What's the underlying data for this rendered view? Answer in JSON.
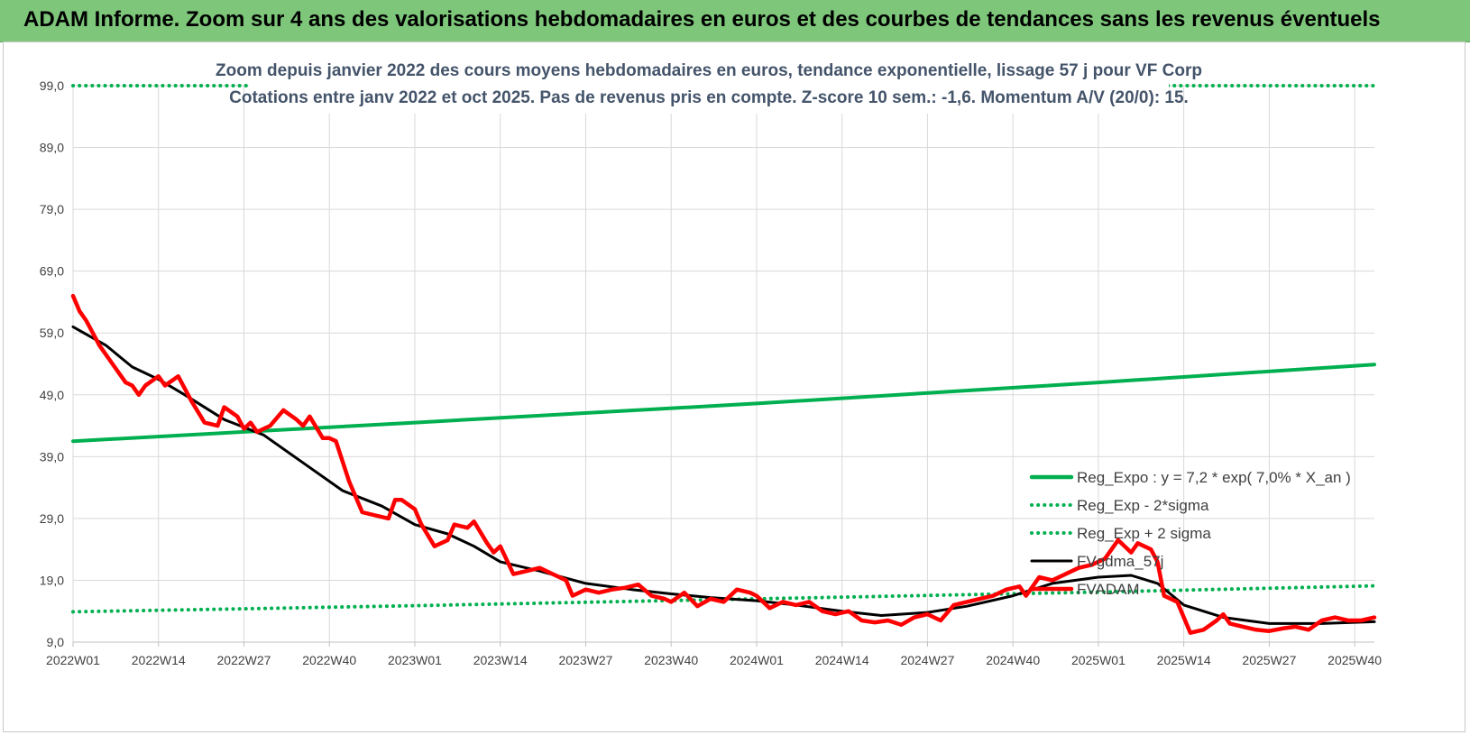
{
  "banner": {
    "title": "ADAM Informe. Zoom sur 4 ans des valorisations hebdomadaires en euros et des courbes de tendances sans les revenus éventuels"
  },
  "colors": {
    "banner_bg": "#7dc67a",
    "reg_expo": "#00b050",
    "fvgdma": "#000000",
    "fvadam": "#ff0000",
    "title_text": "#44546a"
  },
  "chart_data": {
    "type": "line",
    "title_lines": [
      "Zoom depuis janvier 2022 des cours moyens hebdomadaires en euros, tendance exponentielle, lissage 57 j pour VF Corp",
      "Cotations entre janv 2022 et oct 2025. Pas de revenus pris en compte. Z-score 10 sem.: -1,6. Momentum A/V (20/0): 15."
    ],
    "ylim": [
      9.0,
      99.0
    ],
    "yticks": [
      "9,0",
      "19,0",
      "29,0",
      "39,0",
      "49,0",
      "59,0",
      "69,0",
      "79,0",
      "89,0",
      "99,0"
    ],
    "xtick_labels": [
      "2022W01",
      "2022W14",
      "2022W27",
      "2022W40",
      "2023W01",
      "2023W14",
      "2023W27",
      "2023W40",
      "2024W01",
      "2024W14",
      "2024W27",
      "2024W40",
      "2025W01",
      "2025W14",
      "2025W27",
      "2025W40"
    ],
    "grid": true,
    "legend_position": "bottom-right",
    "series": [
      {
        "name": "Reg_Expo : y = 7,2 * exp( 7,0% *  X_an )",
        "style": "solid",
        "color": "#00b050",
        "points": [
          [
            "2022W01",
            41.5
          ],
          [
            "2023W01",
            44.5
          ],
          [
            "2024W01",
            47.6
          ],
          [
            "2025W01",
            51.0
          ],
          [
            "2025W43",
            53.9
          ]
        ]
      },
      {
        "name": "Reg_Exp - 2*sigma",
        "style": "dotted",
        "color": "#00b050",
        "points": [
          [
            "2022W01",
            13.9
          ],
          [
            "2023W01",
            14.9
          ],
          [
            "2024W01",
            16.0
          ],
          [
            "2025W01",
            17.1
          ],
          [
            "2025W43",
            18.1
          ]
        ]
      },
      {
        "name": "Reg_Exp + 2 sigma",
        "style": "dotted",
        "color": "#00b050",
        "points": [
          [
            "2022W01",
            99.0
          ],
          [
            "2025W43",
            99.0
          ]
        ]
      },
      {
        "name": "FVgdma_57j",
        "style": "solid",
        "color": "#000000",
        "points": [
          [
            "2022W01",
            60.0
          ],
          [
            "2022W06",
            57.0
          ],
          [
            "2022W10",
            53.5
          ],
          [
            "2022W14",
            51.5
          ],
          [
            "2022W18",
            49.0
          ],
          [
            "2022W24",
            45.0
          ],
          [
            "2022W30",
            42.5
          ],
          [
            "2022W36",
            38.0
          ],
          [
            "2022W42",
            33.5
          ],
          [
            "2022W48",
            31.0
          ],
          [
            "2023W01",
            28.0
          ],
          [
            "2023W06",
            26.5
          ],
          [
            "2023W10",
            24.5
          ],
          [
            "2023W14",
            22.0
          ],
          [
            "2023W20",
            20.5
          ],
          [
            "2023W27",
            18.5
          ],
          [
            "2023W34",
            17.5
          ],
          [
            "2023W40",
            16.8
          ],
          [
            "2023W46",
            16.2
          ],
          [
            "2024W01",
            15.7
          ],
          [
            "2024W07",
            15.0
          ],
          [
            "2024W14",
            14.0
          ],
          [
            "2024W20",
            13.3
          ],
          [
            "2024W27",
            13.8
          ],
          [
            "2024W33",
            14.8
          ],
          [
            "2024W40",
            16.5
          ],
          [
            "2024W46",
            18.5
          ],
          [
            "2025W01",
            19.5
          ],
          [
            "2025W06",
            19.8
          ],
          [
            "2025W10",
            18.5
          ],
          [
            "2025W14",
            15.0
          ],
          [
            "2025W20",
            13.0
          ],
          [
            "2025W27",
            12.0
          ],
          [
            "2025W35",
            12.0
          ],
          [
            "2025W43",
            12.3
          ]
        ]
      },
      {
        "name": "FVADAM",
        "style": "solid",
        "color": "#ff0000",
        "points": [
          [
            "2022W01",
            65.0
          ],
          [
            "2022W02",
            62.5
          ],
          [
            "2022W03",
            61.0
          ],
          [
            "2022W05",
            57.0
          ],
          [
            "2022W07",
            54.0
          ],
          [
            "2022W09",
            51.0
          ],
          [
            "2022W10",
            50.5
          ],
          [
            "2022W11",
            49.0
          ],
          [
            "2022W12",
            50.5
          ],
          [
            "2022W14",
            52.0
          ],
          [
            "2022W15",
            50.5
          ],
          [
            "2022W17",
            52.0
          ],
          [
            "2022W19",
            48.0
          ],
          [
            "2022W21",
            44.5
          ],
          [
            "2022W23",
            44.0
          ],
          [
            "2022W24",
            47.0
          ],
          [
            "2022W26",
            45.5
          ],
          [
            "2022W27",
            43.5
          ],
          [
            "2022W28",
            44.5
          ],
          [
            "2022W29",
            43.0
          ],
          [
            "2022W31",
            44.0
          ],
          [
            "2022W33",
            46.5
          ],
          [
            "2022W35",
            45.0
          ],
          [
            "2022W36",
            44.0
          ],
          [
            "2022W37",
            45.5
          ],
          [
            "2022W39",
            42.0
          ],
          [
            "2022W40",
            42.0
          ],
          [
            "2022W41",
            41.5
          ],
          [
            "2022W43",
            35.0
          ],
          [
            "2022W45",
            30.0
          ],
          [
            "2022W47",
            29.5
          ],
          [
            "2022W49",
            29.0
          ],
          [
            "2022W50",
            32.0
          ],
          [
            "2022W51",
            32.0
          ],
          [
            "2023W01",
            30.5
          ],
          [
            "2023W02",
            28.0
          ],
          [
            "2023W04",
            24.5
          ],
          [
            "2023W06",
            25.5
          ],
          [
            "2023W07",
            28.0
          ],
          [
            "2023W09",
            27.5
          ],
          [
            "2023W10",
            28.5
          ],
          [
            "2023W12",
            25.0
          ],
          [
            "2023W13",
            23.5
          ],
          [
            "2023W14",
            24.5
          ],
          [
            "2023W16",
            20.0
          ],
          [
            "2023W18",
            20.5
          ],
          [
            "2023W20",
            21.0
          ],
          [
            "2023W22",
            20.0
          ],
          [
            "2023W24",
            19.0
          ],
          [
            "2023W25",
            16.5
          ],
          [
            "2023W27",
            17.5
          ],
          [
            "2023W29",
            17.0
          ],
          [
            "2023W31",
            17.5
          ],
          [
            "2023W33",
            17.8
          ],
          [
            "2023W35",
            18.3
          ],
          [
            "2023W37",
            16.5
          ],
          [
            "2023W39",
            16.0
          ],
          [
            "2023W40",
            15.5
          ],
          [
            "2023W42",
            17.0
          ],
          [
            "2023W44",
            14.8
          ],
          [
            "2023W46",
            16.0
          ],
          [
            "2023W48",
            15.5
          ],
          [
            "2023W50",
            17.5
          ],
          [
            "2023W52",
            17.0
          ],
          [
            "2024W01",
            16.5
          ],
          [
            "2024W03",
            14.5
          ],
          [
            "2024W05",
            15.5
          ],
          [
            "2024W07",
            15.0
          ],
          [
            "2024W09",
            15.5
          ],
          [
            "2024W11",
            14.0
          ],
          [
            "2024W13",
            13.5
          ],
          [
            "2024W15",
            14.0
          ],
          [
            "2024W17",
            12.5
          ],
          [
            "2024W19",
            12.2
          ],
          [
            "2024W21",
            12.5
          ],
          [
            "2024W23",
            11.8
          ],
          [
            "2024W25",
            13.0
          ],
          [
            "2024W27",
            13.5
          ],
          [
            "2024W29",
            12.5
          ],
          [
            "2024W31",
            15.0
          ],
          [
            "2024W33",
            15.5
          ],
          [
            "2024W35",
            16.0
          ],
          [
            "2024W37",
            16.5
          ],
          [
            "2024W39",
            17.5
          ],
          [
            "2024W41",
            18.0
          ],
          [
            "2024W42",
            16.5
          ],
          [
            "2024W44",
            19.5
          ],
          [
            "2024W46",
            19.0
          ],
          [
            "2024W48",
            20.0
          ],
          [
            "2024W50",
            21.0
          ],
          [
            "2024W52",
            21.5
          ],
          [
            "2025W02",
            22.5
          ],
          [
            "2025W04",
            25.5
          ],
          [
            "2025W06",
            23.5
          ],
          [
            "2025W07",
            25.0
          ],
          [
            "2025W09",
            24.0
          ],
          [
            "2025W10",
            22.0
          ],
          [
            "2025W11",
            16.5
          ],
          [
            "2025W13",
            15.5
          ],
          [
            "2025W15",
            10.5
          ],
          [
            "2025W17",
            11.0
          ],
          [
            "2025W19",
            12.5
          ],
          [
            "2025W20",
            13.5
          ],
          [
            "2025W21",
            12.0
          ],
          [
            "2025W23",
            11.5
          ],
          [
            "2025W25",
            11.0
          ],
          [
            "2025W27",
            10.8
          ],
          [
            "2025W29",
            11.2
          ],
          [
            "2025W31",
            11.5
          ],
          [
            "2025W33",
            11.0
          ],
          [
            "2025W35",
            12.5
          ],
          [
            "2025W37",
            13.0
          ],
          [
            "2025W39",
            12.5
          ],
          [
            "2025W41",
            12.5
          ],
          [
            "2025W43",
            13.0
          ]
        ]
      }
    ]
  }
}
